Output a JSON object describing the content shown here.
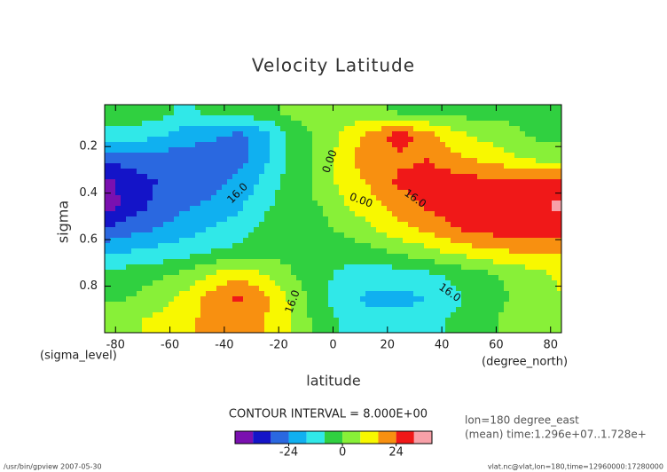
{
  "chart_data": {
    "type": "contour",
    "title": "Velocity Latitude",
    "x_label": "latitude",
    "y_label": "sigma",
    "x_units": "(degree_north)",
    "y_units": "(sigma_level)",
    "xlim": [
      -84,
      84
    ],
    "ylim": [
      1.0,
      0.02
    ],
    "xticks": [
      -80,
      -60,
      -40,
      -20,
      0,
      20,
      40,
      60,
      80
    ],
    "yticks": [
      0.2,
      0.4,
      0.6,
      0.8
    ],
    "x": [
      -85,
      -75,
      -65,
      -55,
      -45,
      -35,
      -25,
      -15,
      -5,
      5,
      15,
      25,
      35,
      45,
      55,
      65,
      75,
      85
    ],
    "y": [
      0.05,
      0.15,
      0.25,
      0.35,
      0.45,
      0.55,
      0.65,
      0.75,
      0.85,
      0.95
    ],
    "z": [
      [
        -2,
        -2,
        -4,
        -10,
        -6,
        -4,
        -2,
        2,
        4,
        4,
        2,
        -2,
        -2,
        -2,
        -4,
        -2,
        -2,
        -2
      ],
      [
        -12,
        -12,
        -14,
        -20,
        -22,
        -26,
        -20,
        -4,
        2,
        10,
        20,
        28,
        18,
        10,
        6,
        2,
        -2,
        -2
      ],
      [
        -30,
        -28,
        -28,
        -28,
        -30,
        -28,
        -18,
        -6,
        2,
        14,
        22,
        22,
        24,
        18,
        14,
        10,
        6,
        4
      ],
      [
        -44,
        -36,
        -32,
        -30,
        -28,
        -22,
        -14,
        -4,
        2,
        12,
        18,
        26,
        26,
        28,
        26,
        26,
        26,
        26
      ],
      [
        -44,
        -38,
        -30,
        -26,
        -22,
        -18,
        -10,
        -2,
        0,
        8,
        14,
        20,
        26,
        28,
        28,
        28,
        30,
        34
      ],
      [
        -34,
        -28,
        -24,
        -20,
        -16,
        -12,
        -6,
        -2,
        -2,
        2,
        8,
        14,
        18,
        24,
        28,
        28,
        28,
        30
      ],
      [
        -18,
        -16,
        -14,
        -12,
        -8,
        -6,
        -4,
        -2,
        -4,
        -4,
        -2,
        2,
        6,
        10,
        14,
        16,
        16,
        18
      ],
      [
        -6,
        -4,
        -2,
        2,
        8,
        14,
        8,
        0,
        -6,
        -10,
        -12,
        -12,
        -10,
        -6,
        -2,
        2,
        6,
        10
      ],
      [
        -2,
        0,
        4,
        10,
        20,
        26,
        18,
        6,
        -6,
        -14,
        -18,
        -18,
        -16,
        -10,
        -4,
        0,
        4,
        8
      ],
      [
        4,
        6,
        10,
        14,
        18,
        20,
        16,
        8,
        -4,
        -10,
        -14,
        -14,
        -12,
        -6,
        -2,
        2,
        6,
        8
      ]
    ],
    "contour_labels": [
      "0.00",
      "0.00",
      "16.0",
      "16.0",
      "16.0",
      "16.0"
    ],
    "colorbar": {
      "title": "CONTOUR INTERVAL = 8.000E+00",
      "levels": [
        -48,
        -40,
        -32,
        -24,
        -16,
        -8,
        0,
        8,
        16,
        24,
        32,
        40
      ],
      "colors": [
        "#7a10b0",
        "#1414c8",
        "#2a68e0",
        "#10b0f0",
        "#30e8e8",
        "#30d040",
        "#88f038",
        "#f8f800",
        "#f89010",
        "#f01818",
        "#f8a0a8"
      ],
      "ticks": [
        -24,
        0,
        24
      ]
    },
    "info": [
      "lon=180 degree_east",
      "(mean) time:1.296e+07..1.728e+"
    ],
    "footer_left": "/usr/bin/gpview  2007-05-30",
    "footer_right": "vlat.nc@vlat,lon=180,time=12960000:17280000"
  }
}
